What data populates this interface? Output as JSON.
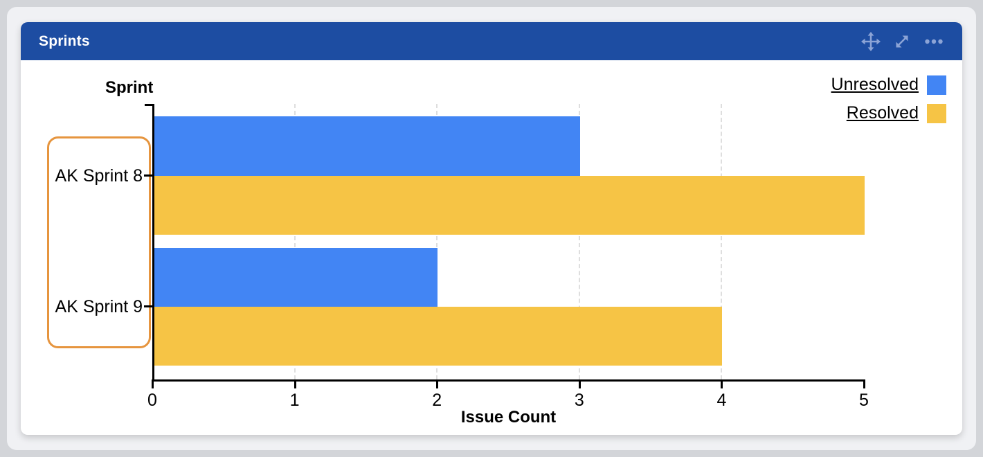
{
  "panel": {
    "title": "Sprints",
    "toolbar_icons": [
      "move",
      "expand",
      "more-options"
    ]
  },
  "chart_data": {
    "type": "bar",
    "orientation": "horizontal",
    "categories": [
      "AK Sprint 8",
      "AK Sprint 9"
    ],
    "series": [
      {
        "name": "Unresolved",
        "color": "#4285F4",
        "values": [
          3,
          2
        ]
      },
      {
        "name": "Resolved",
        "color": "#F6C445",
        "values": [
          5,
          4
        ]
      }
    ],
    "xlabel": "Issue Count",
    "ylabel": "Sprint",
    "xlim": [
      0,
      5
    ],
    "xticks": [
      0,
      1,
      2,
      3,
      4,
      5
    ],
    "gridlines_at": [
      1,
      2,
      3,
      4
    ],
    "legend_position": "top-right",
    "grid": "vertical-dashed"
  },
  "colors": {
    "header_bg": "#1D4DA2",
    "header_text": "#FFFFFF",
    "header_icon": "#8CA4D6",
    "unresolved_bar": "#4285F4",
    "resolved_bar": "#F6C445",
    "category_highlight_border": "#E6953F",
    "gridline": "#DEDEDE",
    "axis": "#000000",
    "card_bg": "#FFFFFF",
    "page_bg": "#F0F1F4",
    "outer_bg": "#D3D5D9"
  }
}
